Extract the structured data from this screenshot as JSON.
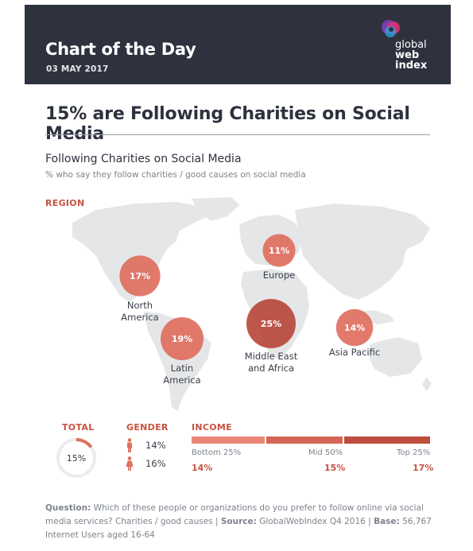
{
  "header": {
    "title": "Chart of the Day",
    "date": "03 MAY 2017",
    "logo_lines": [
      "global",
      "web",
      "index"
    ]
  },
  "main_title": "15% are Following Charities on Social Media",
  "chart": {
    "subtitle": "Following Charities on Social Media",
    "description": "% who say they follow charities / good causes on social media",
    "region_label": "REGION"
  },
  "stats": {
    "total_label": "TOTAL",
    "total_value": "15%",
    "gender_label": "GENDER",
    "gender": [
      {
        "icon": "male-icon",
        "value": "14%"
      },
      {
        "icon": "female-icon",
        "value": "16%"
      }
    ],
    "income_label": "INCOME",
    "income": [
      {
        "label": "Bottom 25%",
        "value": "14%"
      },
      {
        "label": "Mid 50%",
        "value": "15%"
      },
      {
        "label": "Top 25%",
        "value": "17%"
      }
    ]
  },
  "footer": {
    "question_label": "Question:",
    "question_text": " Which of these people or organizations do you prefer to follow online via social media services? Charities / good causes",
    "source_label": "Source:",
    "source_text": " GlobalWebIndex Q4 2016",
    "base_label": "Base:",
    "base_text": " 56,767 Internet Users aged 16-64",
    "sep": " | "
  },
  "colors": {
    "accent": "#c7523f",
    "bubble_light": "#df6f5e",
    "bubble_dark": "#b9493b",
    "header_bg": "#2e323f",
    "map_land": "#e5e6e8"
  },
  "chart_data": {
    "type": "bubble-map",
    "title": "Following Charities on Social Media",
    "subtitle": "% who say they follow charities / good causes on social media",
    "unit": "%",
    "regions": [
      {
        "name": "North America",
        "value": 17
      },
      {
        "name": "Latin America",
        "value": 19
      },
      {
        "name": "Europe",
        "value": 11
      },
      {
        "name": "Middle East and Africa",
        "value": 25
      },
      {
        "name": "Asia Pacific",
        "value": 14
      }
    ],
    "total": 15,
    "gender": [
      {
        "name": "Male",
        "value": 14
      },
      {
        "name": "Female",
        "value": 16
      }
    ],
    "income": [
      {
        "name": "Bottom 25%",
        "value": 14
      },
      {
        "name": "Mid 50%",
        "value": 15
      },
      {
        "name": "Top 25%",
        "value": 17
      }
    ]
  }
}
